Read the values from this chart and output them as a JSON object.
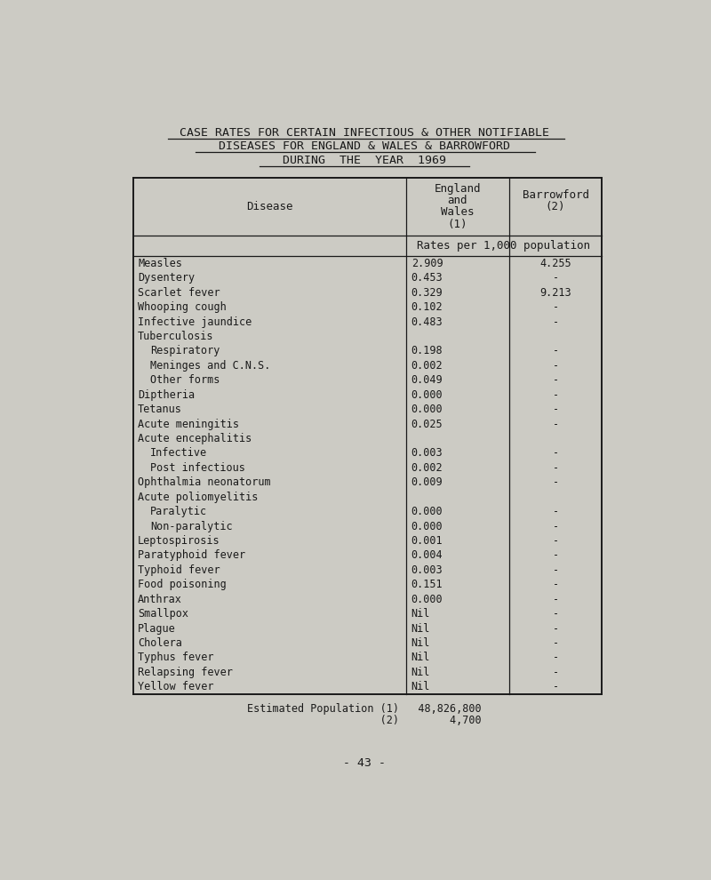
{
  "title_line1": "CASE RATES FOR CERTAIN INFECTIOUS & OTHER NOTIFIABLE",
  "title_line2": "DISEASES FOR ENGLAND & WALES & BARROWFORD",
  "title_line3": "DURING  THE  YEAR  1969",
  "col_header_disease": "Disease",
  "col_header_ew1": "England",
  "col_header_ew2": "and",
  "col_header_ew3": "Wales",
  "col_header_ew4": "(1)",
  "col_header_barr1": "Barrowford",
  "col_header_barr2": "(2)",
  "col_header_rates": "Rates per 1,000 population",
  "rows": [
    {
      "disease": "Measles",
      "indent": false,
      "ew": "2.909",
      "barr": "4.255"
    },
    {
      "disease": "Dysentery",
      "indent": false,
      "ew": "0.453",
      "barr": "-"
    },
    {
      "disease": "Scarlet fever",
      "indent": false,
      "ew": "0.329",
      "barr": "9.213"
    },
    {
      "disease": "Whooping cough",
      "indent": false,
      "ew": "0.102",
      "barr": "-"
    },
    {
      "disease": "Infective jaundice",
      "indent": false,
      "ew": "0.483",
      "barr": "-"
    },
    {
      "disease": "Tuberculosis",
      "indent": false,
      "ew": "",
      "barr": ""
    },
    {
      "disease": "Respiratory",
      "indent": true,
      "ew": "0.198",
      "barr": "-"
    },
    {
      "disease": "Meninges and C.N.S.",
      "indent": true,
      "ew": "0.002",
      "barr": "-"
    },
    {
      "disease": "Other forms",
      "indent": true,
      "ew": "0.049",
      "barr": "-"
    },
    {
      "disease": "Diptheria",
      "indent": false,
      "ew": "0.000",
      "barr": "-"
    },
    {
      "disease": "Tetanus",
      "indent": false,
      "ew": "0.000",
      "barr": "-"
    },
    {
      "disease": "Acute meningitis",
      "indent": false,
      "ew": "0.025",
      "barr": "-"
    },
    {
      "disease": "Acute encephalitis",
      "indent": false,
      "ew": "",
      "barr": ""
    },
    {
      "disease": "Infective",
      "indent": true,
      "ew": "0.003",
      "barr": "-"
    },
    {
      "disease": "Post infectious",
      "indent": true,
      "ew": "0.002",
      "barr": "-"
    },
    {
      "disease": "Ophthalmia neonatorum",
      "indent": false,
      "ew": "0.009",
      "barr": "-"
    },
    {
      "disease": "Acute poliomyelitis",
      "indent": false,
      "ew": "",
      "barr": ""
    },
    {
      "disease": "Paralytic",
      "indent": true,
      "ew": "0.000",
      "barr": "-"
    },
    {
      "disease": "Non-paralytic",
      "indent": true,
      "ew": "0.000",
      "barr": "-"
    },
    {
      "disease": "Leptospirosis",
      "indent": false,
      "ew": "0.001",
      "barr": "-"
    },
    {
      "disease": "Paratyphoid fever",
      "indent": false,
      "ew": "0.004",
      "barr": "-"
    },
    {
      "disease": "Typhoid fever",
      "indent": false,
      "ew": "0.003",
      "barr": "-"
    },
    {
      "disease": "Food poisoning",
      "indent": false,
      "ew": "0.151",
      "barr": "-"
    },
    {
      "disease": "Anthrax",
      "indent": false,
      "ew": "0.000",
      "barr": "-"
    },
    {
      "disease": "Smallpox",
      "indent": false,
      "ew": "Nil",
      "barr": "-"
    },
    {
      "disease": "Plague",
      "indent": false,
      "ew": "Nil",
      "barr": "-"
    },
    {
      "disease": "Cholera",
      "indent": false,
      "ew": "Nil",
      "barr": "-"
    },
    {
      "disease": "Typhus fever",
      "indent": false,
      "ew": "Nil",
      "barr": "-"
    },
    {
      "disease": "Relapsing fever",
      "indent": false,
      "ew": "Nil",
      "barr": "-"
    },
    {
      "disease": "Yellow fever",
      "indent": false,
      "ew": "Nil",
      "barr": "-"
    }
  ],
  "footnote_line1": "Estimated Population (1)   48,826,800",
  "footnote_line2": "                     (2)        4,700",
  "page_number": "- 43 -",
  "bg_color": "#cccbc4",
  "text_color": "#1a1a1a",
  "font_family": "DejaVu Sans Mono"
}
